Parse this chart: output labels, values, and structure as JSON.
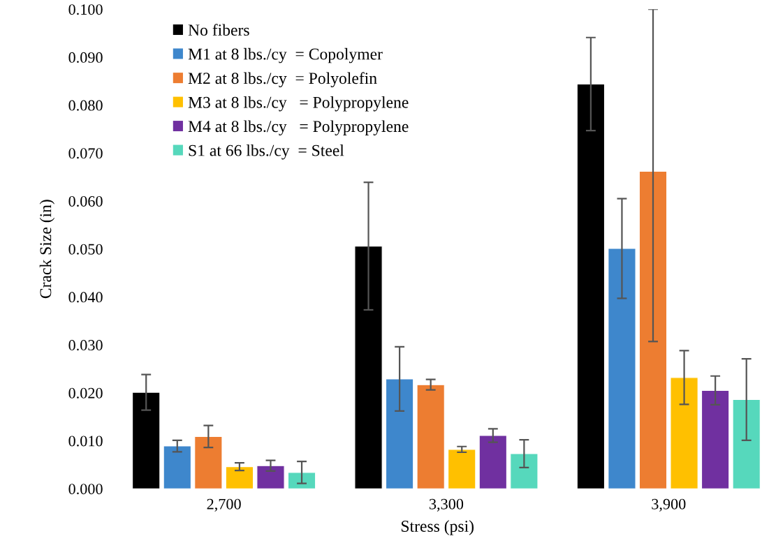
{
  "chart_data": {
    "type": "bar",
    "xlabel": "Stress (psi)",
    "ylabel": "Crack Size (in)",
    "categories": [
      "2,700",
      "3,300",
      "3,900"
    ],
    "series": [
      {
        "name": "No fibers",
        "color": "#000000",
        "values": [
          0.0201,
          0.0506,
          0.0844
        ],
        "errors": [
          0.0037,
          0.0133,
          0.0097
        ]
      },
      {
        "name": "M1 at 8 lbs./cy  = Copolymer",
        "color": "#3e87cc",
        "values": [
          0.0089,
          0.0229,
          0.0501
        ],
        "errors": [
          0.0012,
          0.0067,
          0.0104
        ]
      },
      {
        "name": "M2 at 8 lbs./cy  = Polyolefin",
        "color": "#ed7d31",
        "values": [
          0.0109,
          0.0217,
          0.0662
        ],
        "errors": [
          0.0023,
          0.0011,
          [
            0.0307,
            0.1
          ]
        ]
      },
      {
        "name": "M3 at 8 lbs./cy   = Polypropylene",
        "color": "#ffc000",
        "values": [
          0.0046,
          0.0082,
          0.0232
        ],
        "errors": [
          0.0008,
          0.0006,
          0.0056
        ]
      },
      {
        "name": "M4 at 8 lbs./cy   = Polypropylene",
        "color": "#7030a0",
        "values": [
          0.0048,
          0.0111,
          0.0205
        ],
        "errors": [
          0.0011,
          0.0014,
          0.003
        ]
      },
      {
        "name": "S1 at 66 lbs./cy  = Steel",
        "color": "#56d8bc",
        "values": [
          0.0034,
          0.0073,
          0.0186
        ],
        "errors": [
          0.0023,
          0.0029,
          0.0085
        ]
      }
    ],
    "ylim": [
      0,
      0.1
    ],
    "yticks": [
      {
        "value": 0,
        "label": "0.000"
      },
      {
        "value": 0.01,
        "label": "0.010"
      },
      {
        "value": 0.02,
        "label": "0.020"
      },
      {
        "value": 0.03,
        "label": "0.030"
      },
      {
        "value": 0.04,
        "label": "0.040"
      },
      {
        "value": 0.05,
        "label": "0.050"
      },
      {
        "value": 0.06,
        "label": "0.060"
      },
      {
        "value": 0.07,
        "label": "0.070"
      },
      {
        "value": 0.08,
        "label": "0.080"
      },
      {
        "value": 0.09,
        "label": "0.090"
      },
      {
        "value": 0.1,
        "label": "0.100"
      }
    ],
    "grid": false,
    "legend": "top left"
  }
}
